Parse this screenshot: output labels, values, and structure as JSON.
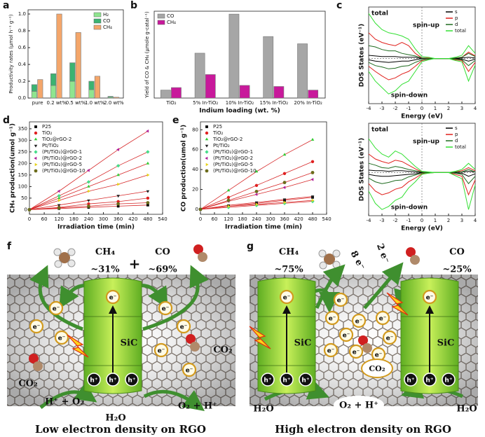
{
  "chart_data": [
    {
      "type": "bar",
      "label": "a",
      "ylabel": "Productivity rates (μmol h⁻¹ g⁻¹)",
      "categories": [
        "pure",
        "0.2 wt%",
        "0.5 wt%",
        "1.0 wt%",
        "2.0 wt%"
      ],
      "series": [
        {
          "name": "H₂",
          "color": "#8fe58f",
          "group": 0,
          "values": [
            0.08,
            0.15,
            0.2,
            0.1,
            0.01
          ]
        },
        {
          "name": "CO",
          "color": "#3cb371",
          "group": 0,
          "values": [
            0.08,
            0.14,
            0.22,
            0.1,
            0.01
          ]
        },
        {
          "name": "CH₄",
          "color": "#f4a66a",
          "group": 1,
          "values": [
            0.22,
            1.0,
            0.78,
            0.26,
            0.01
          ]
        }
      ],
      "ylim": [
        0,
        1.05
      ],
      "yticks": [
        {
          "value": 0,
          "label": "0.0"
        },
        0.2,
        0.4,
        0.6,
        0.8,
        {
          "value": 1,
          "label": "1.0"
        }
      ],
      "legend": "upper right"
    },
    {
      "type": "bar",
      "label": "b",
      "ylabel": "Yield of CO & CH₄ (μmole g-catal⁻¹)",
      "xlabel": "Indium loading (wt. %)",
      "categories": [
        "TiO₂",
        "5% In-TiO₂",
        "10% In-TiO₂",
        "15% In-TiO₂",
        "20% In-TiO₂"
      ],
      "series": [
        {
          "name": "CO",
          "color": "#a6a6a6",
          "group": 0,
          "values": [
            110,
            620,
            1160,
            850,
            750
          ]
        },
        {
          "name": "CH₄",
          "color": "#c8199b",
          "group": 1,
          "values": [
            145,
            325,
            175,
            160,
            110
          ]
        }
      ],
      "ylim": [
        0,
        1200
      ],
      "legend": "upper left"
    },
    {
      "type": "line",
      "label": "c",
      "xlabel": "Energy (eV)",
      "ylabel": "DOS States (eV⁻¹)",
      "annotations": [
        "total",
        "spin-up",
        "spin-down"
      ],
      "x": [
        -4,
        -3.5,
        -3,
        -2.5,
        -2,
        -1.5,
        -1,
        -0.5,
        0,
        0.5,
        1,
        1.5,
        2,
        2.5,
        3,
        3.5,
        4
      ],
      "series": [
        {
          "name": "s",
          "color": "#000000",
          "values": [
            5,
            4,
            3,
            3,
            3,
            2,
            2,
            2,
            0,
            0,
            0,
            0,
            0,
            0,
            1,
            2,
            1
          ],
          "values_down": [
            -2,
            -4,
            -5,
            -6,
            -5,
            -4,
            -4,
            -2,
            0,
            0,
            0,
            0,
            0,
            0,
            -1,
            -4,
            -1
          ]
        },
        {
          "name": "p",
          "color": "#e0201c",
          "values": [
            40,
            30,
            25,
            22,
            20,
            25,
            20,
            8,
            1,
            1,
            0,
            0,
            0,
            1,
            2,
            10,
            4
          ],
          "values_down": [
            -12,
            -20,
            -27,
            -33,
            -30,
            -24,
            -20,
            -12,
            -3,
            -1,
            0,
            0,
            0,
            -2,
            -3,
            -20,
            -6
          ]
        },
        {
          "name": "d",
          "color": "#1f6b1f",
          "values": [
            20,
            18,
            14,
            12,
            12,
            8,
            6,
            4,
            1,
            0,
            0,
            0,
            0,
            1,
            2,
            8,
            3
          ],
          "values_down": [
            -6,
            -11,
            -13,
            -16,
            -15,
            -12,
            -11,
            -6,
            -2,
            -1,
            0,
            0,
            0,
            -1,
            -2,
            -11,
            -3
          ]
        },
        {
          "name": "total",
          "color": "#33e033",
          "values": [
            70,
            55,
            45,
            40,
            38,
            35,
            30,
            15,
            3,
            2,
            0,
            0,
            0,
            2,
            5,
            20,
            8
          ],
          "values_down": [
            -20,
            -35,
            -45,
            -55,
            -50,
            -40,
            -35,
            -20,
            -5,
            -2,
            0,
            0,
            0,
            -3,
            -5,
            -35,
            -10
          ]
        }
      ],
      "xlim": [
        -4,
        4
      ],
      "xticks": [
        -4,
        -3,
        -2,
        -1,
        0,
        1,
        2,
        3,
        4
      ],
      "ylim": [
        -70,
        80
      ],
      "legend": "upper right"
    },
    {
      "type": "line",
      "xlabel": "Energy (eV)",
      "ylabel": "DOS States (eV⁻¹)",
      "annotations": [
        "total",
        "spin-up",
        "spin-down"
      ],
      "x": [
        -4,
        -3.5,
        -3,
        -2.5,
        -2,
        -1.5,
        -1,
        -0.5,
        0,
        0.5,
        1,
        1.5,
        2,
        2.5,
        3,
        3.5,
        4
      ],
      "series": [
        {
          "name": "s",
          "color": "#000000",
          "values": [
            4,
            3,
            3,
            2,
            3,
            3,
            2,
            1,
            0,
            0,
            0,
            0,
            0,
            0,
            1,
            2,
            1
          ],
          "values_down": [
            -3,
            -5,
            -6,
            -6,
            -5,
            -4,
            -3,
            -2,
            0,
            0,
            0,
            0,
            0,
            -1,
            -1,
            -6,
            -2
          ]
        },
        {
          "name": "p",
          "color": "#e0201c",
          "values": [
            30,
            22,
            18,
            15,
            20,
            18,
            12,
            6,
            1,
            0,
            0,
            0,
            0,
            1,
            3,
            8,
            3
          ],
          "values_down": [
            -18,
            -30,
            -36,
            -33,
            -27,
            -24,
            -15,
            -9,
            -2,
            -1,
            0,
            0,
            0,
            -3,
            -6,
            -36,
            -12
          ]
        },
        {
          "name": "d",
          "color": "#1f6b1f",
          "values": [
            15,
            12,
            8,
            7,
            10,
            8,
            5,
            3,
            1,
            0,
            0,
            0,
            0,
            1,
            1,
            5,
            1
          ],
          "values_down": [
            -9,
            -15,
            -18,
            -16,
            -13,
            -12,
            -7,
            -4,
            -1,
            0,
            0,
            0,
            0,
            -1,
            -3,
            -18,
            -6
          ]
        },
        {
          "name": "total",
          "color": "#33e033",
          "values": [
            55,
            40,
            30,
            25,
            35,
            30,
            20,
            10,
            2,
            1,
            0,
            0,
            0,
            2,
            5,
            15,
            5
          ],
          "values_down": [
            -30,
            -50,
            -60,
            -55,
            -45,
            -40,
            -25,
            -15,
            -3,
            -1,
            0,
            0,
            0,
            -5,
            -10,
            -60,
            -20
          ]
        }
      ],
      "xlim": [
        -4,
        4
      ],
      "xticks": [
        -4,
        -3,
        -2,
        -1,
        0,
        1,
        2,
        3,
        4
      ],
      "ylim": [
        -70,
        80
      ],
      "legend": "upper right"
    },
    {
      "type": "scatter",
      "label": "d",
      "xlabel": "Irradiation time (min)",
      "ylabel": "CH₄ production(umol g⁻¹)",
      "fit_color": "#d62728",
      "x": [
        0,
        120,
        240,
        360,
        480
      ],
      "series": [
        {
          "name": "P25",
          "color": "#000000",
          "marker": "square",
          "values": [
            0,
            5,
            10,
            15,
            20
          ]
        },
        {
          "name": "TiO₂",
          "color": "#e02020",
          "marker": "circle",
          "values": [
            0,
            10,
            25,
            35,
            50
          ]
        },
        {
          "name": "TiO₂@rGO-2",
          "color": "#33cc33",
          "marker": "triangle",
          "values": [
            0,
            50,
            100,
            150,
            200
          ]
        },
        {
          "name": "Pt/TiO₂",
          "color": "#222222",
          "marker": "triangle-down",
          "values": [
            0,
            20,
            40,
            60,
            80
          ]
        },
        {
          "name": "(Pt/TiO₂)@rGO-1",
          "color": "#44dd88",
          "marker": "diamond",
          "values": [
            0,
            60,
            120,
            190,
            250
          ]
        },
        {
          "name": "(Pt/TiO₂)@rGO-2",
          "color": "#b0209a",
          "marker": "triangle-left",
          "values": [
            0,
            80,
            170,
            260,
            340
          ]
        },
        {
          "name": "(Pt/TiO₂)@rGO-5",
          "color": "#e6d21a",
          "marker": "triangle-right",
          "values": [
            0,
            40,
            80,
            110,
            150
          ]
        },
        {
          "name": "(Pt/TiO₂)@rGO-10",
          "color": "#6b6b1a",
          "marker": "hexagon",
          "values": [
            0,
            8,
            15,
            25,
            30
          ]
        }
      ],
      "xlim": [
        0,
        540
      ],
      "xticks": [
        0,
        60,
        120,
        180,
        240,
        300,
        360,
        420,
        480,
        540
      ],
      "ylim": [
        -20,
        380
      ],
      "yticks": [
        0,
        50,
        100,
        150,
        200,
        250,
        300,
        350
      ],
      "legend": "upper left"
    },
    {
      "type": "scatter",
      "label": "e",
      "xlabel": "Irradiation time (min)",
      "ylabel": "CO production(umol g⁻¹)",
      "fit_color": "#d62728",
      "x": [
        0,
        120,
        240,
        360,
        480
      ],
      "series": [
        {
          "name": "P25",
          "color": "#000000",
          "marker": "square",
          "values": [
            0,
            3,
            6,
            9,
            12
          ]
        },
        {
          "name": "TiO₂",
          "color": "#e02020",
          "marker": "circle",
          "values": [
            0,
            12,
            24,
            36,
            48
          ]
        },
        {
          "name": "TiO₂@rGO-2",
          "color": "#33cc33",
          "marker": "triangle",
          "values": [
            0,
            19,
            38,
            55,
            70
          ]
        },
        {
          "name": "Pt/TiO₂",
          "color": "#222222",
          "marker": "triangle-down",
          "values": [
            0,
            4,
            7,
            10,
            13
          ]
        },
        {
          "name": "(Pt/TiO₂)@rGO-1",
          "color": "#44dd88",
          "marker": "diamond",
          "values": [
            0,
            2,
            4,
            6,
            8
          ]
        },
        {
          "name": "(Pt/TiO₂)@rGO-2",
          "color": "#b0209a",
          "marker": "triangle-left",
          "values": [
            0,
            8,
            15,
            22,
            30
          ]
        },
        {
          "name": "(Pt/TiO₂)@rGO-5",
          "color": "#e6d21a",
          "marker": "triangle-right",
          "values": [
            0,
            3,
            5,
            7,
            9
          ]
        },
        {
          "name": "(Pt/TiO₂)@rGO-10",
          "color": "#6b6b1a",
          "marker": "hexagon",
          "values": [
            0,
            9,
            18,
            27,
            37
          ]
        }
      ],
      "xlim": [
        0,
        540
      ],
      "xticks": [
        0,
        60,
        120,
        180,
        240,
        300,
        360,
        420,
        480,
        540
      ],
      "ylim": [
        -5,
        88
      ],
      "yticks": [
        0,
        20,
        40,
        60,
        80
      ],
      "legend": "upper left"
    }
  ],
  "diagrams": [
    {
      "label": "f",
      "products": [
        {
          "formula": "CH₄",
          "share": "~31%"
        },
        {
          "formula": "CO",
          "share": "~69%"
        }
      ],
      "plus": "+",
      "electron": "e⁻",
      "hole": "h⁺",
      "semiconductor": "SiC",
      "reactant": "CO₂",
      "water": "H₂O",
      "oxidation": [
        "H⁺ + O₂",
        "O₂ + H⁺"
      ],
      "caption": "Low electron density on RGO"
    },
    {
      "label": "g",
      "products": [
        {
          "formula": "CH₄",
          "share": "~75%"
        },
        {
          "formula": "CO",
          "share": "~25%"
        }
      ],
      "transfer": [
        "8 e⁻",
        "2 e⁻"
      ],
      "electron": "e⁻",
      "hole": "h⁺",
      "semiconductor": "SiC",
      "reactant": "CO₂",
      "water": "H₂O",
      "oxidation": [
        "O₂ + H⁺"
      ],
      "caption": "High electron density on RGO"
    }
  ]
}
